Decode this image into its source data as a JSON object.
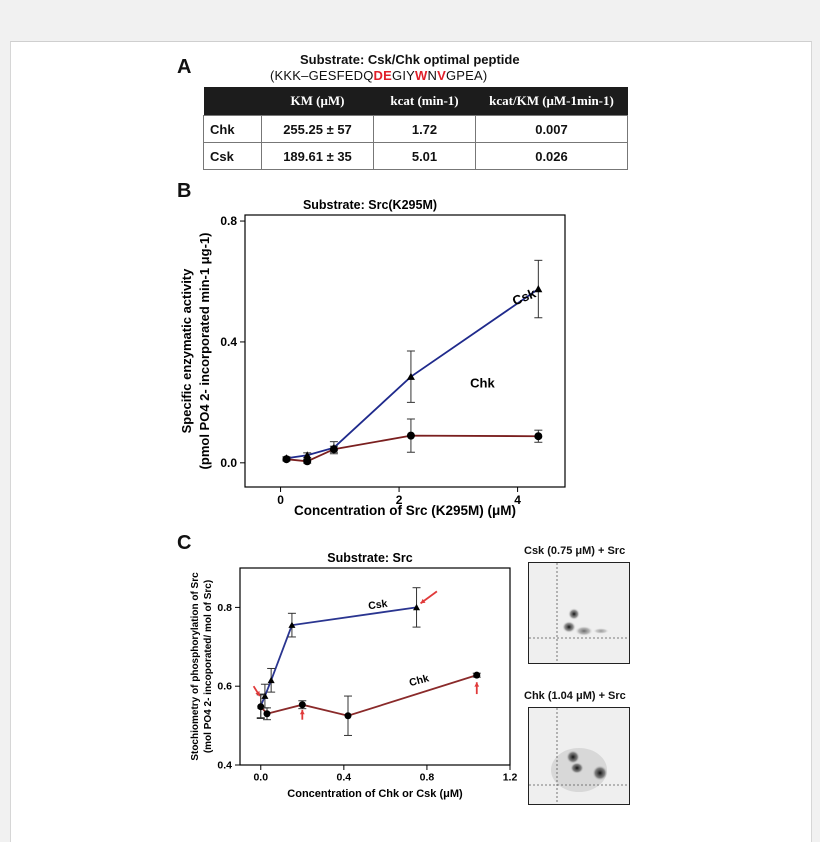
{
  "panels": {
    "a": "A",
    "b": "B",
    "c": "C"
  },
  "panel_a": {
    "title": "Substrate: Csk/Chk optimal peptide",
    "peptide": {
      "open": "(KKK–GESFEDQ",
      "red1": "DE",
      "mid1": "GIY",
      "red2": "W",
      "mid2": "N",
      "red3": "V",
      "close": "GPEA)"
    },
    "table": {
      "headers": [
        "",
        "KM (μM)",
        "kcat (min-1)",
        "kcat/KM (μM-1min-1)"
      ],
      "rows": [
        [
          "Chk",
          "255.25 ± 57",
          "1.72",
          "0.007"
        ],
        [
          "Csk",
          "189.61 ± 35",
          "5.01",
          "0.026"
        ]
      ]
    }
  },
  "gels": {
    "csk_label": "Csk (0.75 μM) + Src",
    "chk_label": "Chk (1.04 μM) + Src"
  },
  "chart_data": [
    {
      "type": "line",
      "title": "Substrate: Src(K295M)",
      "xlabel": "Concentration of Src (K295M) (μM)",
      "ylabel_line1": "Specific enzymatic activity",
      "ylabel_line2": "(pmol PO4 2- incorporated min-1 μg-1)",
      "xlim": [
        -0.6,
        4.8
      ],
      "ylim": [
        -0.08,
        0.82
      ],
      "xticks": [
        0,
        2,
        4
      ],
      "yticks": [
        0.0,
        0.4,
        0.8
      ],
      "ytick_labels": [
        "0.0",
        "0.4",
        "0.8"
      ],
      "grid": false,
      "series": [
        {
          "name": "Csk",
          "color": "#1f2a8c",
          "marker": "triangle",
          "x": [
            0.1,
            0.45,
            0.9,
            2.2,
            4.35
          ],
          "y": [
            0.015,
            0.025,
            0.05,
            0.285,
            0.575
          ],
          "err": [
            0.005,
            0.008,
            0.02,
            0.085,
            0.095
          ]
        },
        {
          "name": "Chk",
          "color": "#7a1f1f",
          "marker": "circle",
          "x": [
            0.1,
            0.45,
            0.9,
            2.2,
            4.35
          ],
          "y": [
            0.012,
            0.005,
            0.045,
            0.09,
            0.088
          ],
          "err": [
            0.004,
            0.006,
            0.01,
            0.055,
            0.02
          ]
        }
      ]
    },
    {
      "type": "line",
      "title": "Substrate: Src",
      "xlabel": "Concentration of Chk or Csk (μM)",
      "ylabel_line1": "Stochiometry of phosphorylation of Src",
      "ylabel_line2": "(mol PO4 2- incoporated/ mol of Src)",
      "xlim": [
        -0.1,
        1.2
      ],
      "ylim": [
        0.4,
        0.9
      ],
      "xticks": [
        0.0,
        0.4,
        0.8,
        1.2
      ],
      "xtick_labels": [
        "0.0",
        "0.4",
        "0.8",
        "1.2"
      ],
      "yticks": [
        0.4,
        0.6,
        0.8
      ],
      "ytick_labels": [
        "0.4",
        "0.6",
        "0.8"
      ],
      "grid": false,
      "series": [
        {
          "name": "Csk",
          "color": "#2a3590",
          "marker": "triangle",
          "x": [
            0.0,
            0.02,
            0.05,
            0.15,
            0.75
          ],
          "y": [
            0.55,
            0.575,
            0.615,
            0.755,
            0.8
          ],
          "err": [
            0.03,
            0.03,
            0.03,
            0.03,
            0.05
          ]
        },
        {
          "name": "Chk",
          "color": "#8a2a2a",
          "marker": "circle",
          "x": [
            0.0,
            0.03,
            0.2,
            0.42,
            1.04
          ],
          "y": [
            0.548,
            0.53,
            0.553,
            0.525,
            0.628
          ],
          "err": [
            0.03,
            0.015,
            0.01,
            0.05,
            0.005
          ]
        }
      ]
    }
  ]
}
